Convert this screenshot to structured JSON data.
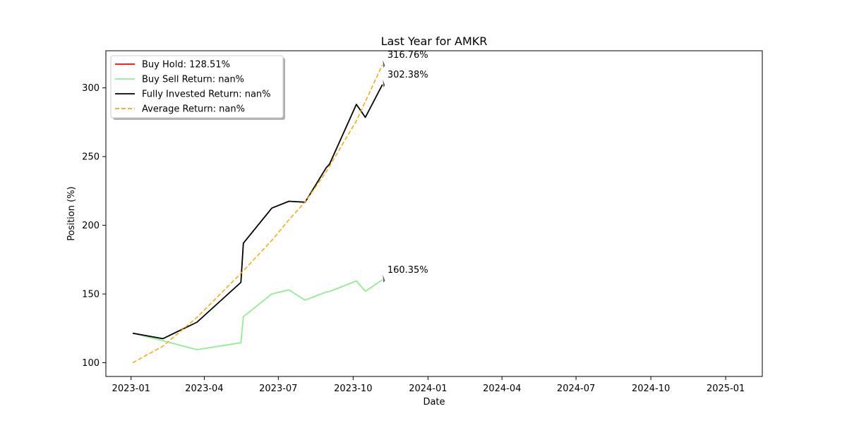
{
  "chart_data": {
    "type": "line",
    "title": "Last Year for AMKR",
    "xlabel": "Date",
    "ylabel": "Position (%)",
    "xlim": [
      "2022-12-01",
      "2025-02-15"
    ],
    "ylim": [
      90,
      327
    ],
    "x_ticks": [
      "2023-01",
      "2023-04",
      "2023-07",
      "2023-10",
      "2024-01",
      "2024-04",
      "2024-07",
      "2024-10",
      "2025-01"
    ],
    "y_ticks": [
      100,
      150,
      200,
      250,
      300
    ],
    "grid": false,
    "legend": "upper-left",
    "series": [
      {
        "name": "Buy Hold: 128.51%",
        "color": "#ff0000",
        "style": "solid",
        "points": []
      },
      {
        "name": "Buy Sell Return: nan%",
        "color": "#90ee90",
        "style": "solid",
        "points": [
          [
            "2023-01-03",
            121.5
          ],
          [
            "2023-02-09",
            116.0
          ],
          [
            "2023-03-23",
            109.5
          ],
          [
            "2023-05-16",
            114.5
          ],
          [
            "2023-05-19",
            133.5
          ],
          [
            "2023-06-23",
            150.0
          ],
          [
            "2023-07-14",
            153.0
          ],
          [
            "2023-08-03",
            145.5
          ],
          [
            "2023-08-29",
            151.5
          ],
          [
            "2023-09-02",
            151.8
          ],
          [
            "2023-10-05",
            159.5
          ],
          [
            "2023-10-16",
            152.0
          ],
          [
            "2023-11-06",
            160.35
          ]
        ]
      },
      {
        "name": "Fully Invested Return: nan%",
        "color": "#000000",
        "style": "solid",
        "points": [
          [
            "2023-01-03",
            121.5
          ],
          [
            "2023-02-09",
            117.5
          ],
          [
            "2023-03-23",
            129.5
          ],
          [
            "2023-05-16",
            158.5
          ],
          [
            "2023-05-19",
            187.0
          ],
          [
            "2023-06-23",
            212.5
          ],
          [
            "2023-07-14",
            217.5
          ],
          [
            "2023-08-03",
            216.8
          ],
          [
            "2023-08-29",
            242.0
          ],
          [
            "2023-09-02",
            244.5
          ],
          [
            "2023-10-05",
            288.0
          ],
          [
            "2023-10-16",
            278.5
          ],
          [
            "2023-11-06",
            302.38
          ]
        ]
      },
      {
        "name": "Average Return: nan%",
        "color": "#ffa500",
        "style": "dashed",
        "points": [
          [
            "2023-01-03",
            100.0
          ],
          [
            "2023-02-09",
            112.0
          ],
          [
            "2023-03-23",
            133.0
          ],
          [
            "2023-05-16",
            165.0
          ],
          [
            "2023-06-23",
            189.0
          ],
          [
            "2023-07-14",
            204.0
          ],
          [
            "2023-08-03",
            217.0
          ],
          [
            "2023-08-29",
            239.0
          ],
          [
            "2023-10-05",
            276.0
          ],
          [
            "2023-11-06",
            316.76
          ]
        ]
      }
    ],
    "annotations": [
      {
        "x": "2023-11-06",
        "y": 316.76,
        "text": "316.76%"
      },
      {
        "x": "2023-11-06",
        "y": 302.38,
        "text": "302.38%"
      },
      {
        "x": "2023-11-06",
        "y": 160.35,
        "text": "160.35%"
      }
    ]
  }
}
